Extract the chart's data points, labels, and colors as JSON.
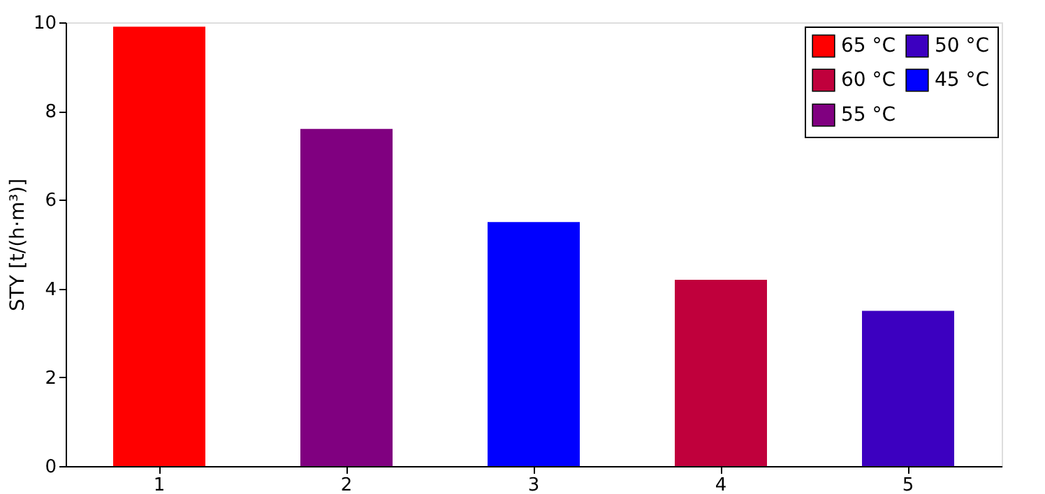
{
  "chart_data": {
    "type": "bar",
    "ylabel": "STY [t/(h·m³)]",
    "categories": [
      "1",
      "2",
      "3",
      "4",
      "5"
    ],
    "series": [
      {
        "name": "65 °C",
        "color": "#ff0000",
        "values": [
          9.9,
          null,
          null,
          null,
          null
        ]
      },
      {
        "name": "60 °C",
        "color": "#c0003c",
        "values": [
          null,
          null,
          null,
          4.2,
          null
        ]
      },
      {
        "name": "55 °C",
        "color": "#800080",
        "values": [
          null,
          7.6,
          null,
          null,
          null
        ]
      },
      {
        "name": "50 °C",
        "color": "#3c00c0",
        "values": [
          null,
          null,
          null,
          null,
          3.5
        ]
      },
      {
        "name": "45 °C",
        "color": "#0000ff",
        "values": [
          null,
          null,
          5.5,
          null,
          null
        ]
      }
    ],
    "ylim": [
      0,
      10
    ],
    "yticks": [
      0,
      2,
      4,
      6,
      8,
      10
    ],
    "grid": false,
    "legend": "top right"
  }
}
